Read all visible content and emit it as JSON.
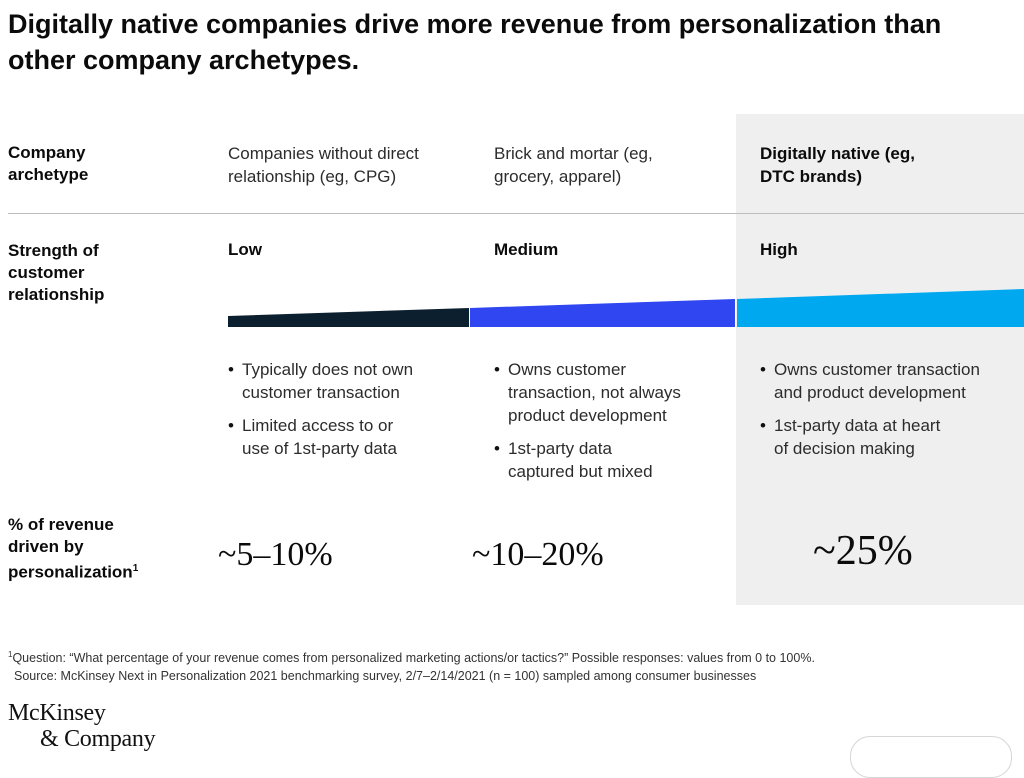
{
  "title": "Digitally native companies drive more revenue from personalization than other company archetypes.",
  "rows": {
    "archetype_label": [
      "Company",
      "archetype"
    ],
    "strength_label": [
      "Strength of",
      "customer",
      "relationship"
    ],
    "revenue_label": [
      "% of revenue",
      "driven by",
      "personalization"
    ],
    "revenue_sup": "1"
  },
  "columns": [
    {
      "heading": [
        "Companies without direct",
        "relationship (eg, CPG)"
      ],
      "strength": "Low",
      "bar_color": "#0c1f2e",
      "bullets": [
        [
          "Typically does not own",
          "customer transaction"
        ],
        [
          "Limited access to or",
          "use of 1st-party data"
        ]
      ],
      "revenue": "~5–10%"
    },
    {
      "heading": [
        "Brick and mortar (eg,",
        "grocery, apparel)"
      ],
      "strength": "Medium",
      "bar_color": "#2f46f0",
      "bullets": [
        [
          "Owns customer",
          "transaction, not always",
          "product development"
        ],
        [
          "1st-party data",
          "captured but mixed"
        ]
      ],
      "revenue": "~10–20%"
    },
    {
      "heading": [
        "Digitally native (eg,",
        "DTC brands)"
      ],
      "strength": "High",
      "bar_color": "#00a8f0",
      "bullets": [
        [
          "Owns customer transaction",
          "and product development"
        ],
        [
          "1st-party data at heart",
          "of decision making"
        ]
      ],
      "revenue": "~25%"
    }
  ],
  "footnote": {
    "sup": "1",
    "line1": "Question: “What percentage of your revenue comes from personalized marketing actions/or tactics?” Possible responses: values from 0 to 100%.",
    "line2": "Source: McKinsey Next in Personalization 2021 benchmarking survey, 2/7–2/14/2021 (n = 100) sampled among consumer businesses"
  },
  "logo": {
    "line1": "McKinsey",
    "line2": "& Company"
  },
  "colors": {
    "highlight_background": "#efefef",
    "divider": "#bdbdbd"
  }
}
